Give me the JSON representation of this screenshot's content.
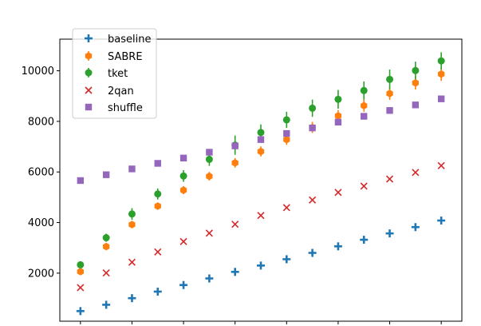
{
  "chart_data": {
    "type": "scatter",
    "title": "",
    "xlabel": "",
    "ylabel": "",
    "x": [
      1,
      2,
      3,
      4,
      5,
      6,
      7,
      8,
      9,
      10,
      11,
      12,
      13,
      14,
      15
    ],
    "xlim": [
      0.2,
      15.8
    ],
    "ylim": [
      100,
      11250
    ],
    "yticks": [
      2000,
      4000,
      6000,
      8000,
      10000
    ],
    "yticklabels": [
      "2000",
      "4000",
      "6000",
      "8000",
      "10000"
    ],
    "xticks": [
      1,
      3,
      5,
      7,
      9,
      11,
      13,
      15
    ],
    "legend_position": "top-left",
    "series": [
      {
        "name": "baseline",
        "marker": "plus",
        "color": "#1f77b4",
        "values": [
          500,
          750,
          1010,
          1270,
          1530,
          1790,
          2050,
          2300,
          2550,
          2800,
          3060,
          3320,
          3570,
          3820,
          4080
        ],
        "errors": []
      },
      {
        "name": "SABRE",
        "marker": "hexagon",
        "color": "#ff7f0e",
        "values": [
          2060,
          3050,
          3920,
          4650,
          5280,
          5830,
          6360,
          6810,
          7280,
          7760,
          8220,
          8620,
          9100,
          9520,
          9870
        ],
        "errors": [
          70,
          100,
          120,
          140,
          160,
          170,
          190,
          200,
          210,
          220,
          230,
          240,
          250,
          260,
          270
        ]
      },
      {
        "name": "tket",
        "marker": "circle",
        "color": "#2ca02c",
        "values": [
          2330,
          3400,
          4340,
          5130,
          5840,
          6500,
          7060,
          7560,
          8060,
          8520,
          8870,
          9220,
          9660,
          10010,
          10390
        ],
        "errors": [
          80,
          160,
          230,
          220,
          230,
          260,
          380,
          320,
          320,
          340,
          370,
          360,
          390,
          350,
          340
        ]
      },
      {
        "name": "2qan",
        "marker": "x",
        "color": "#d62728",
        "values": [
          1430,
          2010,
          2430,
          2840,
          3250,
          3580,
          3930,
          4280,
          4590,
          4890,
          5190,
          5440,
          5720,
          5980,
          6250
        ],
        "errors": []
      },
      {
        "name": "shuffle",
        "marker": "square",
        "color": "#9467bd",
        "values": [
          5660,
          5890,
          6120,
          6340,
          6550,
          6780,
          7030,
          7280,
          7520,
          7740,
          7970,
          8200,
          8430,
          8650,
          8890
        ],
        "errors": []
      }
    ]
  }
}
